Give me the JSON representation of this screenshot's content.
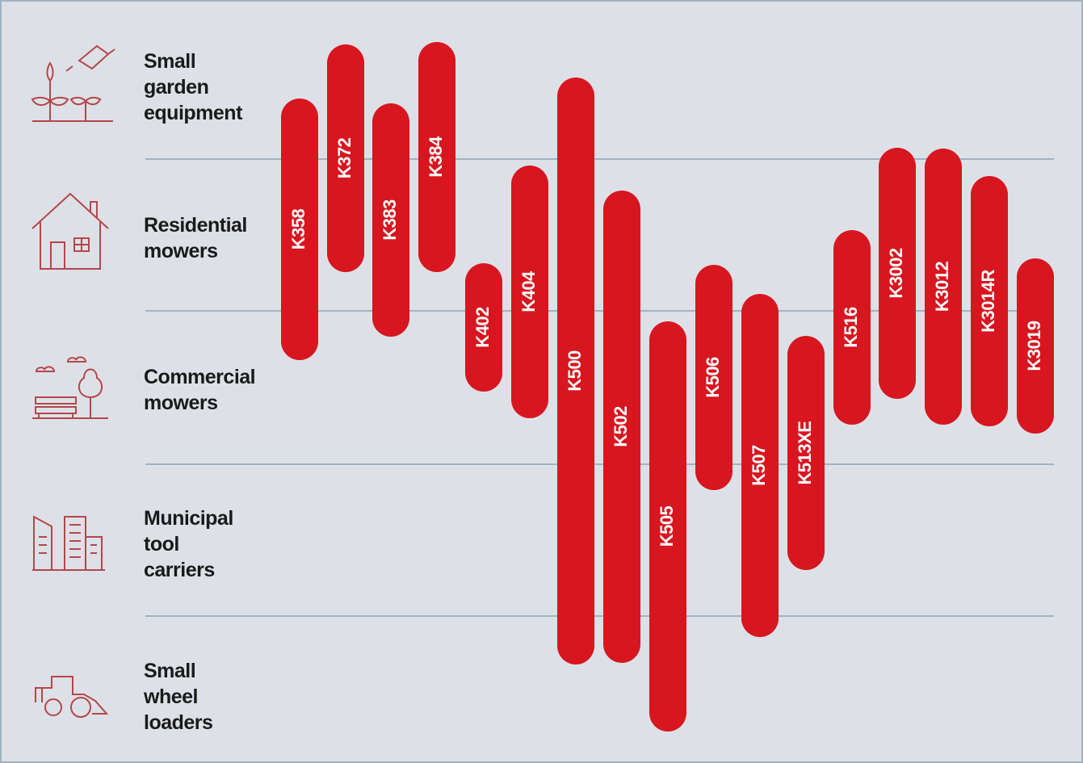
{
  "categories": [
    [
      "Small",
      "garden",
      "equipment"
    ],
    [
      "Residential",
      "mowers"
    ],
    [
      "Commercial",
      "mowers"
    ],
    [
      "Municipal",
      "tool",
      "carriers"
    ],
    [
      "Small",
      "wheel",
      "loaders"
    ]
  ],
  "products": [
    "K358",
    "K372",
    "K383",
    "K384",
    "K402",
    "K404",
    "K500",
    "K502",
    "K505",
    "K506",
    "K507",
    "K513XE",
    "K516",
    "K3002",
    "K3012",
    "K3014R",
    "K3019"
  ]
}
